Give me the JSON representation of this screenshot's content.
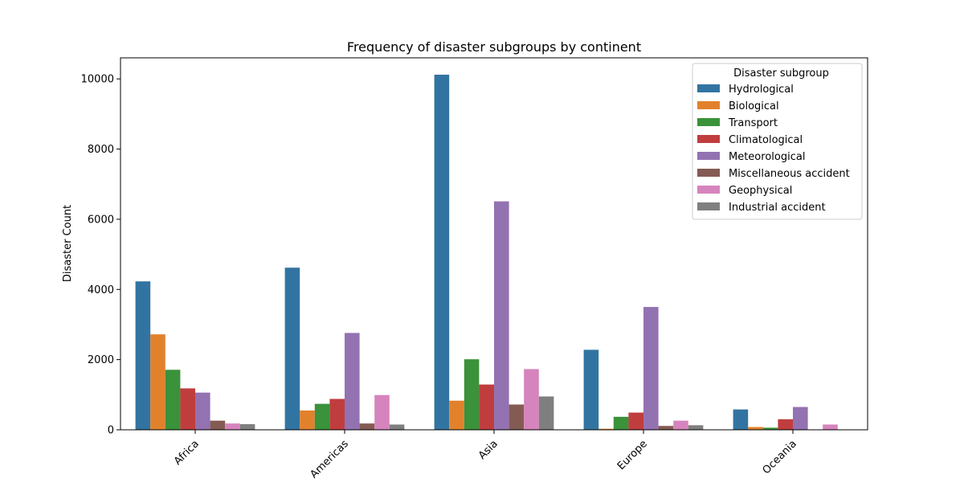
{
  "chart_data": {
    "type": "bar",
    "title": "Frequency of disaster subgroups by continent",
    "xlabel": "",
    "ylabel": "Disaster Count",
    "categories": [
      "Africa",
      "Americas",
      "Asia",
      "Europe",
      "Oceania"
    ],
    "ylim": [
      0,
      10600
    ],
    "yticks": [
      0,
      2000,
      4000,
      6000,
      8000,
      10000
    ],
    "grid": false,
    "legend": {
      "title": "Disaster subgroup",
      "placement": "top-right"
    },
    "series": [
      {
        "name": "Hydrological",
        "color": "#3274a1",
        "values": [
          4230,
          4620,
          10120,
          2280,
          580
        ]
      },
      {
        "name": "Biological",
        "color": "#e1812c",
        "values": [
          2720,
          550,
          830,
          30,
          80
        ]
      },
      {
        "name": "Transport",
        "color": "#3a923a",
        "values": [
          1710,
          740,
          2010,
          370,
          60
        ]
      },
      {
        "name": "Climatological",
        "color": "#c03d3e",
        "values": [
          1180,
          880,
          1290,
          490,
          300
        ]
      },
      {
        "name": "Meteorological",
        "color": "#9372b2",
        "values": [
          1060,
          2760,
          6510,
          3500,
          650
        ]
      },
      {
        "name": "Miscellaneous accident",
        "color": "#845b53",
        "values": [
          260,
          180,
          720,
          110,
          0
        ]
      },
      {
        "name": "Geophysical",
        "color": "#d684bd",
        "values": [
          180,
          990,
          1730,
          260,
          150
        ]
      },
      {
        "name": "Industrial accident",
        "color": "#7f7f7f",
        "values": [
          160,
          150,
          950,
          130,
          0
        ]
      }
    ]
  }
}
